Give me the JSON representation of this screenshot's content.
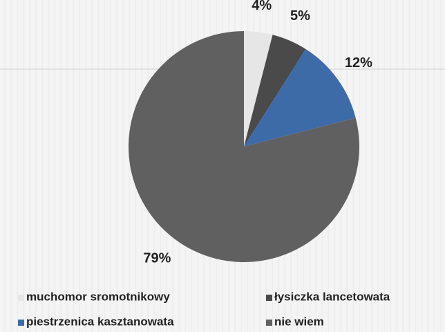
{
  "chart_data": {
    "type": "pie",
    "categories": [
      "muchomor sromotnikowy",
      "łysiczka lancetowata",
      "piestrzenica kasztanowata",
      "nie wiem"
    ],
    "values": [
      4,
      5,
      12,
      79
    ],
    "value_labels": [
      "4%",
      "5%",
      "12%",
      "79%"
    ],
    "colors": [
      "#e6e6e6",
      "#4a4a4a",
      "#3d6ba8",
      "#606060"
    ]
  }
}
